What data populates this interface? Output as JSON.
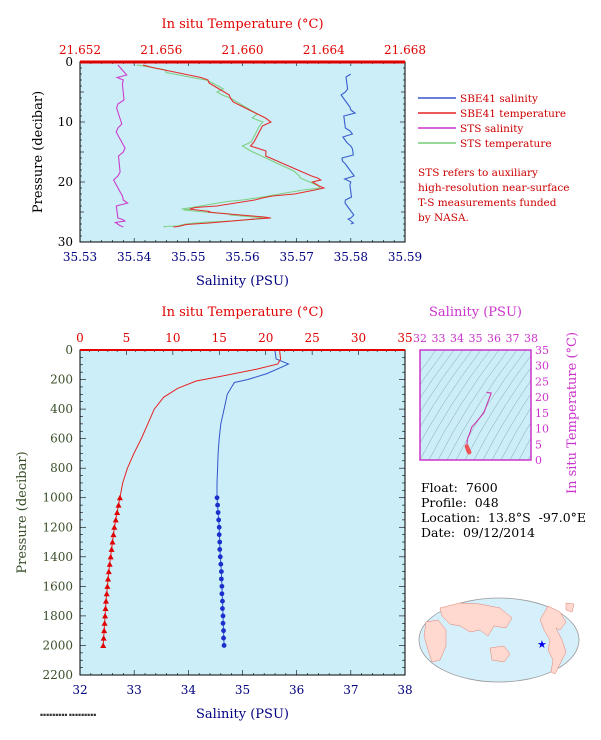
{
  "colors": {
    "plot_bg": "#cceef8",
    "salinity_axis": "#00007f",
    "temperature_axis": "#e00000",
    "pressure_axis_label": "#3a4f2a",
    "ts_axis": "#cc33cc",
    "sbe_salinity": "#3355cc",
    "sbe_temperature": "#e62222",
    "sts_salinity": "#cc33cc",
    "sts_temperature": "#77cc77",
    "note_text": "#cc0000",
    "frame": "#000000"
  },
  "top_chart": {
    "temp_axis_title": "In situ Temperature (°C)",
    "temp_ticks": [
      "21.652",
      "21.656",
      "21.660",
      "21.664",
      "21.668"
    ],
    "sal_axis_title": "Salinity (PSU)",
    "sal_ticks": [
      "35.53",
      "35.54",
      "35.55",
      "35.56",
      "35.57",
      "35.58",
      "35.59"
    ],
    "pres_axis_title": "Pressure (decibar)",
    "pres_ticks": [
      "0",
      "10",
      "20",
      "30"
    ],
    "legend": [
      {
        "label": "SBE41 salinity",
        "color": "#3355cc"
      },
      {
        "label": "SBE41 temperature",
        "color": "#e62222"
      },
      {
        "label": "STS salinity",
        "color": "#cc33cc"
      },
      {
        "label": "STS temperature",
        "color": "#77cc77"
      }
    ],
    "note_lines": [
      "STS refers to auxiliary",
      "high-resolution near-surface",
      "T-S measurements funded",
      "by NASA."
    ]
  },
  "bottom_chart": {
    "temp_axis_title": "In situ Temperature (°C)",
    "temp_ticks": [
      "0",
      "5",
      "10",
      "15",
      "20",
      "25",
      "30",
      "35"
    ],
    "sal_axis_title": "Salinity (PSU)",
    "sal_ticks": [
      "32",
      "33",
      "34",
      "35",
      "36",
      "37",
      "38"
    ],
    "pres_axis_title": "Pressure (decibar)",
    "pres_ticks": [
      "0",
      "200",
      "400",
      "600",
      "800",
      "1000",
      "1200",
      "1400",
      "1600",
      "1800",
      "2000",
      "2200"
    ]
  },
  "ts_chart": {
    "sal_axis_title": "Salinity (PSU)",
    "sal_ticks": [
      "32",
      "33",
      "34",
      "35",
      "36",
      "37",
      "38"
    ],
    "temp_axis_title": "In situ Temperature (°C)",
    "temp_ticks": [
      "0",
      "5",
      "10",
      "15",
      "20",
      "25",
      "30",
      "35"
    ]
  },
  "float_info": {
    "float_line": "Float:  7600",
    "profile_line": "Profile:  048",
    "location_line": "Location:  13.8°S  -97.0°E",
    "date_line": "Date:  09/12/2014"
  },
  "chart_data": [
    {
      "type": "line",
      "title": "",
      "ylabel": "Pressure (decibar)",
      "xlabel": "Salinity (PSU)",
      "x2label": "In situ Temperature (°C)",
      "ylim": [
        30,
        0
      ],
      "xlim": [
        35.53,
        35.59
      ],
      "x2lim": [
        21.652,
        21.668
      ],
      "series": [
        {
          "name": "SBE41 salinity",
          "axis": "salinity",
          "points": [
            [
              35.58,
              2
            ],
            [
              35.579,
              5
            ],
            [
              35.58,
              8
            ],
            [
              35.579,
              11
            ],
            [
              35.58,
              14
            ],
            [
              35.579,
              17
            ],
            [
              35.58,
              20
            ],
            [
              35.579,
              23
            ],
            [
              35.58,
              26
            ],
            [
              35.58,
              27
            ]
          ]
        },
        {
          "name": "SBE41 temperature",
          "axis": "temperature",
          "points": [
            [
              21.6551,
              0.5
            ],
            [
              21.6583,
              3
            ],
            [
              21.6594,
              6
            ],
            [
              21.6614,
              10
            ],
            [
              21.6604,
              14
            ],
            [
              21.6634,
              19
            ],
            [
              21.664,
              21
            ],
            [
              21.6606,
              23
            ],
            [
              21.6574,
              24.5
            ],
            [
              21.6583,
              25
            ],
            [
              21.6614,
              26
            ],
            [
              21.6576,
              27
            ],
            [
              21.6566,
              27.5
            ]
          ]
        },
        {
          "name": "STS salinity",
          "axis": "salinity",
          "points": [
            [
              35.537,
              0.5
            ],
            [
              35.538,
              3
            ],
            [
              35.537,
              7
            ],
            [
              35.537,
              11
            ],
            [
              35.538,
              15
            ],
            [
              35.537,
              19
            ],
            [
              35.538,
              23
            ],
            [
              35.537,
              26
            ],
            [
              35.538,
              27.5
            ]
          ]
        },
        {
          "name": "STS temperature",
          "axis": "temperature",
          "points": [
            [
              21.6548,
              0.5
            ],
            [
              21.6582,
              3
            ],
            [
              21.6594,
              6
            ],
            [
              21.661,
              10
            ],
            [
              21.66,
              14
            ],
            [
              21.6628,
              19
            ],
            [
              21.6638,
              21
            ],
            [
              21.66,
              23
            ],
            [
              21.657,
              24.5
            ],
            [
              21.6581,
              25
            ],
            [
              21.6612,
              26
            ],
            [
              21.6572,
              27
            ],
            [
              21.6562,
              27.5
            ]
          ]
        }
      ]
    },
    {
      "type": "line",
      "title": "",
      "ylabel": "Pressure (decibar)",
      "xlabel": "Salinity (PSU)",
      "x2label": "In situ Temperature (°C)",
      "ylim": [
        2200,
        0
      ],
      "xlim": [
        32,
        38
      ],
      "x2lim": [
        0,
        35
      ],
      "series": [
        {
          "name": "Salinity",
          "axis": "salinity",
          "points": [
            [
              35.6,
              5
            ],
            [
              35.62,
              60
            ],
            [
              35.85,
              95
            ],
            [
              35.7,
              120
            ],
            [
              35.45,
              160
            ],
            [
              35.1,
              200
            ],
            [
              34.85,
              220
            ],
            [
              34.8,
              250
            ],
            [
              34.72,
              300
            ],
            [
              34.66,
              400
            ],
            [
              34.6,
              500
            ],
            [
              34.57,
              600
            ],
            [
              34.55,
              700
            ],
            [
              34.54,
              800
            ],
            [
              34.53,
              900
            ],
            [
              34.53,
              1000
            ],
            [
              34.55,
              1100
            ],
            [
              34.57,
              1200
            ],
            [
              34.58,
              1300
            ],
            [
              34.59,
              1400
            ],
            [
              34.61,
              1500
            ],
            [
              34.62,
              1600
            ],
            [
              34.63,
              1700
            ],
            [
              34.64,
              1800
            ],
            [
              34.65,
              1900
            ],
            [
              34.66,
              2000
            ]
          ]
        },
        {
          "name": "Temperature",
          "axis": "temperature",
          "points": [
            [
              21.5,
              5
            ],
            [
              21.6,
              60
            ],
            [
              21.3,
              95
            ],
            [
              19.0,
              130
            ],
            [
              15.0,
              180
            ],
            [
              12.5,
              210
            ],
            [
              10.5,
              260
            ],
            [
              9.0,
              320
            ],
            [
              8.0,
              400
            ],
            [
              7.3,
              500
            ],
            [
              6.6,
              600
            ],
            [
              5.8,
              700
            ],
            [
              5.1,
              800
            ],
            [
              4.6,
              900
            ],
            [
              4.3,
              1000
            ],
            [
              4.0,
              1100
            ],
            [
              3.7,
              1200
            ],
            [
              3.5,
              1300
            ],
            [
              3.3,
              1400
            ],
            [
              3.1,
              1500
            ],
            [
              2.95,
              1600
            ],
            [
              2.8,
              1700
            ],
            [
              2.7,
              1800
            ],
            [
              2.6,
              1900
            ],
            [
              2.5,
              2000
            ]
          ]
        },
        {
          "name": "Salinity bottle samples",
          "axis": "salinity",
          "marker": "circle",
          "points": [
            [
              34.53,
              1000
            ],
            [
              34.54,
              1050
            ],
            [
              34.55,
              1100
            ],
            [
              34.56,
              1150
            ],
            [
              34.57,
              1200
            ],
            [
              34.57,
              1250
            ],
            [
              34.58,
              1300
            ],
            [
              34.58,
              1350
            ],
            [
              34.59,
              1400
            ],
            [
              34.6,
              1450
            ],
            [
              34.61,
              1500
            ],
            [
              34.61,
              1550
            ],
            [
              34.62,
              1600
            ],
            [
              34.62,
              1650
            ],
            [
              34.63,
              1700
            ],
            [
              34.63,
              1750
            ],
            [
              34.64,
              1800
            ],
            [
              34.64,
              1850
            ],
            [
              34.65,
              1900
            ],
            [
              34.65,
              1950
            ],
            [
              34.66,
              2000
            ]
          ]
        },
        {
          "name": "Temperature bottle samples",
          "axis": "temperature",
          "marker": "triangle",
          "points": [
            [
              4.3,
              1000
            ],
            [
              4.15,
              1050
            ],
            [
              4.0,
              1100
            ],
            [
              3.85,
              1150
            ],
            [
              3.7,
              1200
            ],
            [
              3.6,
              1250
            ],
            [
              3.5,
              1300
            ],
            [
              3.4,
              1350
            ],
            [
              3.3,
              1400
            ],
            [
              3.2,
              1450
            ],
            [
              3.1,
              1500
            ],
            [
              3.02,
              1550
            ],
            [
              2.95,
              1600
            ],
            [
              2.88,
              1650
            ],
            [
              2.8,
              1700
            ],
            [
              2.75,
              1750
            ],
            [
              2.7,
              1800
            ],
            [
              2.65,
              1850
            ],
            [
              2.6,
              1900
            ],
            [
              2.55,
              1950
            ],
            [
              2.5,
              2000
            ]
          ]
        }
      ]
    },
    {
      "type": "line",
      "title": "",
      "xlabel": "Salinity (PSU)",
      "ylabel": "In situ Temperature (°C)",
      "xlim": [
        32,
        38
      ],
      "ylim": [
        0,
        35
      ],
      "series": [
        {
          "name": "T-S curve",
          "points": [
            [
              35.6,
              21.5
            ],
            [
              35.85,
              21.3
            ],
            [
              35.45,
              15.0
            ],
            [
              35.1,
              12.5
            ],
            [
              34.8,
              10.5
            ],
            [
              34.72,
              9.0
            ],
            [
              34.66,
              8.0
            ],
            [
              34.6,
              7.3
            ],
            [
              34.57,
              6.6
            ],
            [
              34.55,
              5.8
            ],
            [
              34.54,
              5.1
            ],
            [
              34.53,
              4.6
            ],
            [
              34.53,
              4.3
            ],
            [
              34.57,
              3.7
            ],
            [
              34.59,
              3.3
            ],
            [
              34.62,
              2.95
            ],
            [
              34.64,
              2.7
            ],
            [
              34.66,
              2.5
            ]
          ]
        }
      ]
    }
  ]
}
